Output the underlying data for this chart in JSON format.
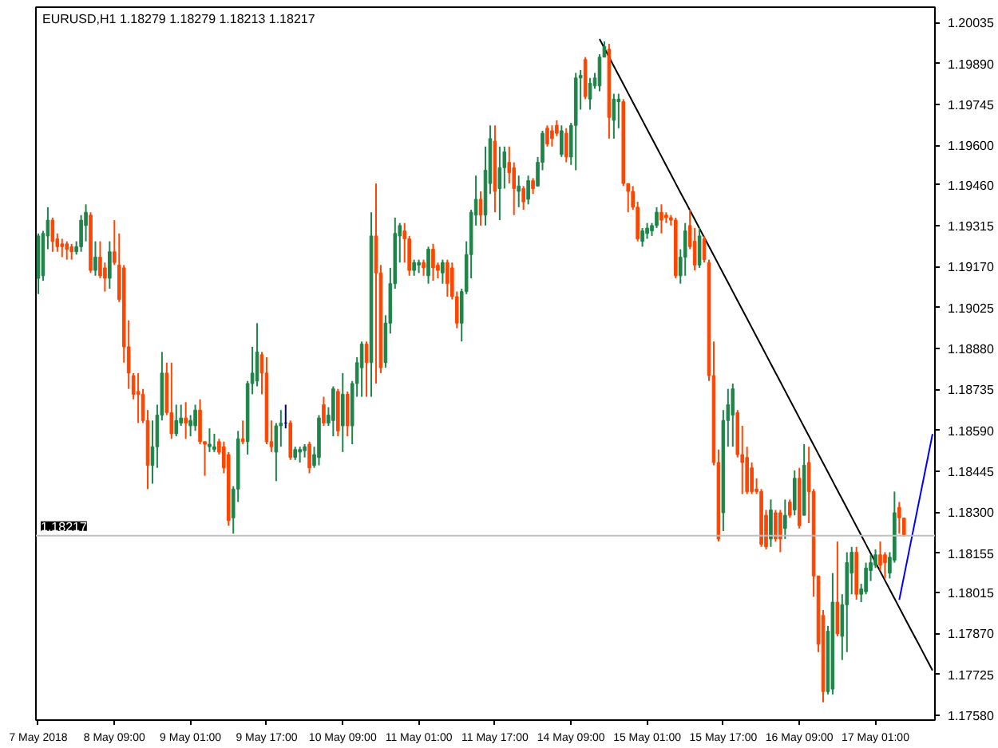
{
  "chart_data": {
    "type": "candlestick",
    "title": "EURUSD,H1 1.18279 1.18279 1.18213 1.18217",
    "ylim": [
      1.17563,
      1.2009
    ],
    "categories": [
      "7 May 2018",
      null,
      null,
      null,
      null,
      null,
      null,
      null,
      null,
      null,
      null,
      null,
      null,
      null,
      null,
      null,
      "8 May 09:00",
      null,
      null,
      null,
      null,
      null,
      null,
      null,
      null,
      null,
      null,
      null,
      null,
      null,
      null,
      null,
      "9 May 01:00",
      null,
      null,
      null,
      null,
      null,
      null,
      null,
      null,
      null,
      null,
      null,
      null,
      null,
      null,
      null,
      "9 May 17:00",
      null,
      null,
      null,
      null,
      null,
      null,
      null,
      null,
      null,
      null,
      null,
      null,
      null,
      null,
      null,
      "10 May 09:00",
      null,
      null,
      null,
      null,
      null,
      null,
      null,
      null,
      null,
      null,
      null,
      null,
      null,
      null,
      null,
      "11 May 01:00",
      null,
      null,
      null,
      null,
      null,
      null,
      null,
      null,
      null,
      null,
      null,
      null,
      null,
      null,
      null,
      "11 May 17:00",
      null,
      null,
      null,
      null,
      null,
      null,
      null,
      null,
      null,
      null,
      null,
      null,
      null,
      null,
      null,
      "14 May 09:00",
      null,
      null,
      null,
      null,
      null,
      null,
      null,
      null,
      null,
      null,
      null,
      null,
      null,
      null,
      null,
      "15 May 01:00",
      null,
      null,
      null,
      null,
      null,
      null,
      null,
      null,
      null,
      null,
      null,
      null,
      null,
      null,
      null,
      "15 May 17:00",
      null,
      null,
      null,
      null,
      null,
      null,
      null,
      null,
      null,
      null,
      null,
      null,
      null,
      null,
      null,
      "16 May 09:00",
      null,
      null,
      null,
      null,
      null,
      null,
      null,
      null,
      null,
      null,
      null,
      null,
      null,
      null,
      null,
      "17 May 01:00",
      null,
      null,
      null,
      null,
      null,
      null,
      null,
      null,
      null,
      null,
      null,
      null
    ],
    "yticks": [
      {
        "value": 1.20035,
        "label": "1.20035"
      },
      {
        "value": 1.1989,
        "label": "1.19890"
      },
      {
        "value": 1.19745,
        "label": "1.19745"
      },
      {
        "value": 1.196,
        "label": "1.19600"
      },
      {
        "value": 1.1946,
        "label": "1.19460"
      },
      {
        "value": 1.19315,
        "label": "1.19315"
      },
      {
        "value": 1.1917,
        "label": "1.19170"
      },
      {
        "value": 1.19025,
        "label": "1.19025"
      },
      {
        "value": 1.1888,
        "label": "1.18880"
      },
      {
        "value": 1.18735,
        "label": "1.18735"
      },
      {
        "value": 1.1859,
        "label": "1.18590"
      },
      {
        "value": 1.18445,
        "label": "1.18445"
      },
      {
        "value": 1.183,
        "label": "1.18300"
      },
      {
        "value": 1.18155,
        "label": "1.18155"
      },
      {
        "value": 1.18015,
        "label": "1.18015"
      },
      {
        "value": 1.1787,
        "label": "1.17870"
      },
      {
        "value": 1.17725,
        "label": "1.17725"
      },
      {
        "value": 1.1758,
        "label": "1.17580"
      }
    ],
    "ref_lines": [
      {
        "axis": "y",
        "value": 1.18217,
        "label": "1.18217",
        "color": "#c0c0c0"
      }
    ],
    "series": [
      {
        "type": "line",
        "color": "#000000",
        "values": [
          null,
          null,
          null,
          null,
          null,
          null,
          null,
          null,
          null,
          null,
          null,
          null,
          null,
          null,
          null,
          null,
          null,
          null,
          null,
          null,
          null,
          null,
          null,
          null,
          null,
          null,
          null,
          null,
          null,
          null,
          null,
          null,
          null,
          null,
          null,
          null,
          null,
          null,
          null,
          null,
          null,
          null,
          null,
          null,
          null,
          null,
          null,
          null,
          null,
          null,
          null,
          null,
          null,
          null,
          null,
          null,
          null,
          null,
          null,
          null,
          null,
          null,
          null,
          null,
          null,
          null,
          null,
          null,
          null,
          null,
          null,
          null,
          null,
          null,
          null,
          null,
          null,
          null,
          null,
          null,
          null,
          null,
          null,
          null,
          null,
          null,
          null,
          null,
          null,
          null,
          null,
          null,
          null,
          null,
          null,
          null,
          null,
          null,
          null,
          null,
          null,
          null,
          null,
          null,
          null,
          null,
          null,
          null,
          null,
          null,
          null,
          null,
          null,
          null,
          null,
          null,
          null,
          null,
          1.19977,
          1.19945,
          1.19913,
          1.19881,
          1.19849,
          1.19817,
          1.19785,
          1.19753,
          1.19721,
          1.19689,
          1.19657,
          1.19625,
          1.19593,
          1.19561,
          1.19529,
          1.19497,
          1.19465,
          1.19433,
          1.19402,
          1.1937,
          1.19338,
          1.19306,
          1.19274,
          1.19242,
          1.1921,
          1.19178,
          1.19146,
          1.19114,
          1.19082,
          1.1905,
          1.19018,
          1.18986,
          1.18954,
          1.18922,
          1.1889,
          1.18858,
          1.18826,
          1.18794,
          1.18762,
          1.1873,
          1.18698,
          1.18666,
          1.18634,
          1.18602,
          1.1857,
          1.18538,
          1.18506,
          1.18474,
          1.18442,
          1.1841,
          1.18378,
          1.18346,
          1.18314,
          1.18282,
          1.1825,
          1.18218,
          1.18186,
          1.18154,
          1.18122,
          1.1809,
          1.18058,
          1.18026,
          1.17994,
          1.17962,
          1.1793,
          1.17898,
          1.17866,
          1.17835,
          1.17803,
          1.17771,
          1.17739
        ]
      },
      {
        "type": "line",
        "color": "#0000ff",
        "values": [
          null,
          null,
          null,
          null,
          null,
          null,
          null,
          null,
          null,
          null,
          null,
          null,
          null,
          null,
          null,
          null,
          null,
          null,
          null,
          null,
          null,
          null,
          null,
          null,
          null,
          null,
          null,
          null,
          null,
          null,
          null,
          null,
          null,
          null,
          null,
          null,
          null,
          null,
          null,
          null,
          null,
          null,
          null,
          null,
          null,
          null,
          null,
          null,
          null,
          null,
          null,
          null,
          null,
          null,
          null,
          null,
          null,
          null,
          null,
          null,
          null,
          null,
          null,
          null,
          null,
          null,
          null,
          null,
          null,
          null,
          null,
          null,
          null,
          null,
          null,
          null,
          null,
          null,
          null,
          null,
          null,
          null,
          null,
          null,
          null,
          null,
          null,
          null,
          null,
          null,
          null,
          null,
          null,
          null,
          null,
          null,
          null,
          null,
          null,
          null,
          null,
          null,
          null,
          null,
          null,
          null,
          null,
          null,
          null,
          null,
          null,
          null,
          null,
          null,
          null,
          null,
          null,
          null,
          null,
          null,
          null,
          null,
          null,
          null,
          null,
          null,
          null,
          null,
          null,
          null,
          null,
          null,
          null,
          null,
          null,
          null,
          null,
          null,
          null,
          null,
          null,
          null,
          null,
          null,
          null,
          null,
          null,
          null,
          null,
          null,
          null,
          null,
          null,
          null,
          null,
          null,
          null,
          null,
          null,
          null,
          null,
          null,
          null,
          null,
          null,
          null,
          null,
          null,
          null,
          null,
          null,
          null,
          null,
          null,
          null,
          null,
          null,
          null,
          null,
          null,
          null,
          1.17989,
          1.18073,
          1.18157,
          1.18241,
          1.18325,
          1.18409,
          1.18493,
          1.18577
        ]
      },
      {
        "colors": [
          "#1e8449",
          "#1e8449",
          "#1e8449",
          "#ff4500",
          "#ff4500",
          "#ff4500",
          "#ff4500",
          "#ff4500",
          "#1e8449",
          "#1e8449",
          "#1e8449",
          "#ff4500",
          "#1e8449",
          "#ff4500",
          "#ff4500",
          "#1e8449",
          "#ff4500",
          "#ff4500",
          "#ff4500",
          "#ff4500",
          "#ff4500",
          "#ff4500",
          "#ff4500",
          "#ff4500",
          "#1e8449",
          "#1e8449",
          "#1e8449",
          "#ff4500",
          "#ff4500",
          "#1e8449",
          "#1e8449",
          "#ff4500",
          "#1e8449",
          "#1e8449",
          "#ff4500",
          "#ff4500",
          "#1e8449",
          "#1e8449",
          "#ff4500",
          "#ff4500",
          "#ff4500",
          "#1e8449",
          "#1e8449",
          "#ff4500",
          "#1e8449",
          "#1e8449",
          "#1e8449",
          "#ff4500",
          "#ff4500",
          "#ff4500",
          "#1e8449",
          "#1e8449",
          "#000080",
          "#ff4500",
          "#1e8449",
          "#1e8449",
          "#1e8449",
          "#ff4500",
          "#1e8449",
          "#1e8449",
          "#ff4500",
          "#1e8449",
          "#1e8449",
          "#ff4500",
          "#1e8449",
          "#ff4500",
          "#1e8449",
          "#1e8449",
          "#1e8449",
          "#ff4500",
          "#1e8449",
          "#ff4500",
          "#ff4500",
          "#1e8449",
          "#1e8449",
          "#1e8449",
          "#1e8449",
          "#ff4500",
          "#ff4500",
          "#1e8449",
          "#1e8449",
          "#ff4500",
          "#1e8449",
          "#ff4500",
          "#ff4500",
          "#1e8449",
          "#ff4500",
          "#ff4500",
          "#ff4500",
          "#1e8449",
          "#1e8449",
          "#1e8449",
          "#1e8449",
          "#ff4500",
          "#1e8449",
          "#1e8449",
          "#ff4500",
          "#1e8449",
          "#1e8449",
          "#ff4500",
          "#ff4500",
          "#1e8449",
          "#ff4500",
          "#1e8449",
          "#ff4500",
          "#1e8449",
          "#1e8449",
          "#ff4500",
          "#ff4500",
          "#ff4500",
          "#1e8449",
          "#ff4500",
          "#1e8449",
          "#1e8449",
          "#1e8449",
          "#ff4500",
          "#1e8449",
          "#1e8449",
          "#1e8449",
          "#1e8449",
          "#ff4500",
          "#1e8449",
          "#1e8449",
          "#ff4500",
          "#ff4500",
          "#ff4500",
          "#ff4500",
          "#1e8449",
          "#1e8449",
          "#1e8449",
          "#1e8449",
          "#ff4500",
          "#ff4500",
          "#ff4500",
          "#ff4500",
          "#1e8449",
          "#1e8449",
          "#ff4500",
          "#ff4500",
          "#1e8449",
          "#ff4500",
          "#ff4500",
          "#ff4500",
          "#ff4500",
          "#1e8449",
          "#1e8449",
          "#1e8449",
          "#ff4500",
          "#ff4500",
          "#ff4500",
          "#ff4500",
          "#ff4500",
          "#ff4500",
          "#ff4500",
          "#1e8449",
          "#ff4500",
          "#ff4500",
          "#1e8449",
          "#ff4500",
          "#1e8449",
          "#ff4500",
          "#1e8449",
          "#ff4500",
          "#ff4500",
          "#ff4500",
          "#ff4500",
          "#1e8449",
          "#1e8449",
          "#ff4500",
          "#1e8449",
          "#1e8449",
          "#1e8449",
          "#ff4500",
          "#1e8449",
          "#1e8449",
          "#1e8449",
          "#1e8449",
          "#ff4500",
          "#ff4500",
          "#1e8449",
          "#1e8449",
          "#ff4500",
          "#ff4500",
          null,
          null,
          null,
          null,
          null,
          null
        ],
        "ohlc": [
          [
            1.19129,
            1.19288,
            1.19073,
            1.19279
          ],
          [
            1.19138,
            1.19297,
            1.1912,
            1.19288
          ],
          [
            1.19279,
            1.19381,
            1.19232,
            1.19335
          ],
          [
            1.19335,
            1.19344,
            1.19223,
            1.1926
          ],
          [
            1.19269,
            1.19288,
            1.19223,
            1.19241
          ],
          [
            1.19251,
            1.19269,
            1.19204,
            1.19241
          ],
          [
            1.19251,
            1.1926,
            1.19195,
            1.19232
          ],
          [
            1.19241,
            1.19251,
            1.19195,
            1.19223
          ],
          [
            1.19223,
            1.1926,
            1.19213,
            1.19241
          ],
          [
            1.19241,
            1.19353,
            1.19223,
            1.19335
          ],
          [
            1.19316,
            1.19391,
            1.1926,
            1.19363
          ],
          [
            1.19353,
            1.19363,
            1.19148,
            1.19157
          ],
          [
            1.19157,
            1.1926,
            1.19138,
            1.19204
          ],
          [
            1.19204,
            1.1926,
            1.19129,
            1.19138
          ],
          [
            1.19166,
            1.19185,
            1.19082,
            1.19129
          ],
          [
            1.19129,
            1.1926,
            1.19092,
            1.19223
          ],
          [
            1.19223,
            1.19335,
            1.19176,
            1.19185
          ],
          [
            1.19176,
            1.19288,
            1.19045,
            1.19054
          ],
          [
            1.19166,
            1.19176,
            1.1883,
            1.18886
          ],
          [
            1.18886,
            1.1898,
            1.18737,
            1.18793
          ],
          [
            1.18784,
            1.18793,
            1.187,
            1.18718
          ],
          [
            1.18728,
            1.18793,
            1.18616,
            1.18718
          ],
          [
            1.18718,
            1.18737,
            1.18616,
            1.18625
          ],
          [
            1.18625,
            1.18662,
            1.18382,
            1.18466
          ],
          [
            1.18466,
            1.18625,
            1.18401,
            1.18532
          ],
          [
            1.18532,
            1.18681,
            1.18457,
            1.18644
          ],
          [
            1.18644,
            1.18868,
            1.18625,
            1.18793
          ],
          [
            1.18793,
            1.1883,
            1.18644,
            1.18653
          ],
          [
            1.18653,
            1.1883,
            1.1856,
            1.18578
          ],
          [
            1.18578,
            1.18681,
            1.18569,
            1.18625
          ],
          [
            1.18616,
            1.18681,
            1.18606,
            1.18634
          ],
          [
            1.18634,
            1.1869,
            1.1856,
            1.18616
          ],
          [
            1.18606,
            1.18644,
            1.18569,
            1.18625
          ],
          [
            1.18606,
            1.18681,
            1.18588,
            1.18662
          ],
          [
            1.18662,
            1.187,
            1.18541,
            1.1855
          ],
          [
            1.1855,
            1.1855,
            1.18429,
            1.18541
          ],
          [
            1.18532,
            1.18597,
            1.18513,
            1.18541
          ],
          [
            1.18522,
            1.18578,
            1.18513,
            1.18532
          ],
          [
            1.1855,
            1.1856,
            1.18504,
            1.18513
          ],
          [
            1.18532,
            1.1855,
            1.18438,
            1.18457
          ],
          [
            1.18504,
            1.18513,
            1.18252,
            1.1827
          ],
          [
            1.1828,
            1.18392,
            1.18224,
            1.18382
          ],
          [
            1.18382,
            1.18588,
            1.18336,
            1.1856
          ],
          [
            1.1856,
            1.18625,
            1.18541,
            1.1855
          ],
          [
            1.1855,
            1.18765,
            1.18504,
            1.18756
          ],
          [
            1.18756,
            1.18886,
            1.18718,
            1.18793
          ],
          [
            1.18765,
            1.1897,
            1.18746,
            1.18868
          ],
          [
            1.18858,
            1.18868,
            1.18718,
            1.18793
          ],
          [
            1.18793,
            1.18849,
            1.18541,
            1.1855
          ],
          [
            1.1855,
            1.18625,
            1.18513,
            1.18532
          ],
          [
            1.18513,
            1.18616,
            1.1841,
            1.18606
          ],
          [
            1.18606,
            1.18662,
            1.18532,
            1.18616
          ],
          [
            1.18616,
            1.18681,
            1.18597,
            1.18616
          ],
          [
            1.18616,
            1.18625,
            1.18485,
            1.18494
          ],
          [
            1.18494,
            1.18532,
            1.18485,
            1.18522
          ],
          [
            1.18513,
            1.18532,
            1.18476,
            1.18522
          ],
          [
            1.18518,
            1.18541,
            1.18494,
            1.18532
          ],
          [
            1.18541,
            1.1855,
            1.18438,
            1.18457
          ],
          [
            1.18466,
            1.18532,
            1.18457,
            1.18504
          ],
          [
            1.18494,
            1.18644,
            1.18466,
            1.18634
          ],
          [
            1.18681,
            1.18709,
            1.18606,
            1.18616
          ],
          [
            1.18616,
            1.18672,
            1.18606,
            1.18644
          ],
          [
            1.18625,
            1.18746,
            1.18569,
            1.18737
          ],
          [
            1.18728,
            1.18737,
            1.18569,
            1.18588
          ],
          [
            1.18606,
            1.18793,
            1.18513,
            1.18718
          ],
          [
            1.18718,
            1.18728,
            1.18569,
            1.18606
          ],
          [
            1.18606,
            1.18765,
            1.18541,
            1.18756
          ],
          [
            1.18756,
            1.18849,
            1.18709,
            1.1883
          ],
          [
            1.18812,
            1.18905,
            1.18709,
            1.18896
          ],
          [
            1.18896,
            1.18905,
            1.18709,
            1.1883
          ],
          [
            1.1883,
            1.19363,
            1.18709,
            1.19279
          ],
          [
            1.19279,
            1.19465,
            1.18756,
            1.19148
          ],
          [
            1.19148,
            1.19176,
            1.18793,
            1.18812
          ],
          [
            1.1883,
            1.18998,
            1.18812,
            1.1897
          ],
          [
            1.1897,
            1.19166,
            1.18933,
            1.1911
          ],
          [
            1.1911,
            1.19344,
            1.19092,
            1.19288
          ],
          [
            1.19279,
            1.19325,
            1.19185,
            1.19316
          ],
          [
            1.19297,
            1.19325,
            1.19185,
            1.19269
          ],
          [
            1.19269,
            1.19279,
            1.19138,
            1.19157
          ],
          [
            1.19157,
            1.19195,
            1.19138,
            1.19185
          ],
          [
            1.19176,
            1.19195,
            1.19148,
            1.19185
          ],
          [
            1.19185,
            1.19195,
            1.19138,
            1.19166
          ],
          [
            1.19138,
            1.19241,
            1.1911,
            1.19232
          ],
          [
            1.19232,
            1.19251,
            1.1912,
            1.19166
          ],
          [
            1.19176,
            1.19185,
            1.19129,
            1.19157
          ],
          [
            1.19148,
            1.19195,
            1.1911,
            1.19185
          ],
          [
            1.19185,
            1.19195,
            1.19064,
            1.1911
          ],
          [
            1.19166,
            1.19185,
            1.19054,
            1.19064
          ],
          [
            1.19064,
            1.19082,
            1.18952,
            1.1897
          ],
          [
            1.1897,
            1.19092,
            1.18905,
            1.19082
          ],
          [
            1.19082,
            1.1926,
            1.19073,
            1.19213
          ],
          [
            1.19213,
            1.19372,
            1.19129,
            1.19363
          ],
          [
            1.19353,
            1.19493,
            1.19316,
            1.19409
          ],
          [
            1.19409,
            1.19437,
            1.19316,
            1.19353
          ],
          [
            1.19353,
            1.19596,
            1.19316,
            1.19512
          ],
          [
            1.19465,
            1.19671,
            1.19428,
            1.19624
          ],
          [
            1.19615,
            1.19671,
            1.19363,
            1.19437
          ],
          [
            1.19447,
            1.19596,
            1.19335,
            1.19521
          ],
          [
            1.19521,
            1.19596,
            1.19447,
            1.19577
          ],
          [
            1.1954,
            1.19596,
            1.19465,
            1.19503
          ],
          [
            1.19521,
            1.1954,
            1.19353,
            1.19447
          ],
          [
            1.19437,
            1.19493,
            1.19381,
            1.19456
          ],
          [
            1.19447,
            1.19456,
            1.19372,
            1.194
          ],
          [
            1.19409,
            1.19493,
            1.19391,
            1.19475
          ],
          [
            1.19475,
            1.19484,
            1.19428,
            1.19447
          ],
          [
            1.19456,
            1.19559,
            1.19456,
            1.1954
          ],
          [
            1.1954,
            1.19652,
            1.19512,
            1.19643
          ],
          [
            1.19661,
            1.19671,
            1.19596,
            1.19605
          ],
          [
            1.19652,
            1.19671,
            1.19596,
            1.19624
          ],
          [
            1.19671,
            1.19689,
            1.19633,
            1.19643
          ],
          [
            1.19568,
            1.19671,
            1.19559,
            1.19652
          ],
          [
            1.19643,
            1.19661,
            1.1954,
            1.19559
          ],
          [
            1.19559,
            1.1968,
            1.19531,
            1.19671
          ],
          [
            1.19671,
            1.19857,
            1.19512,
            1.19839
          ],
          [
            1.19839,
            1.19867,
            1.19727,
            1.19848
          ],
          [
            1.19904,
            1.19913,
            1.19764,
            1.19773
          ],
          [
            1.19764,
            1.19839,
            1.19727,
            1.1982
          ],
          [
            1.19811,
            1.19857,
            1.19801,
            1.19839
          ],
          [
            1.19811,
            1.19923,
            1.19792,
            1.19913
          ],
          [
            1.19913,
            1.19969,
            1.19913,
            1.19951
          ],
          [
            1.19941,
            1.1996,
            1.19624,
            1.19699
          ],
          [
            1.19689,
            1.19783,
            1.19624,
            1.19764
          ],
          [
            1.19755,
            1.19783,
            1.19661,
            1.19764
          ],
          [
            1.19755,
            1.19764,
            1.19456,
            1.19465
          ],
          [
            1.19465,
            1.19465,
            1.19363,
            1.19437
          ],
          [
            1.19437,
            1.19456,
            1.19372,
            1.19381
          ],
          [
            1.19381,
            1.194,
            1.1926,
            1.19269
          ],
          [
            1.1926,
            1.19307,
            1.19241,
            1.19297
          ],
          [
            1.19288,
            1.19325,
            1.19269,
            1.19307
          ],
          [
            1.19297,
            1.19325,
            1.19279,
            1.19316
          ],
          [
            1.19316,
            1.19381,
            1.19307,
            1.19363
          ],
          [
            1.19363,
            1.19391,
            1.19288,
            1.19335
          ],
          [
            1.19353,
            1.19363,
            1.19325,
            1.19344
          ],
          [
            1.19344,
            1.19353,
            1.19316,
            1.19335
          ],
          [
            1.19335,
            1.19344,
            1.19129,
            1.19138
          ],
          [
            1.19138,
            1.19232,
            1.1911,
            1.19204
          ],
          [
            1.19204,
            1.19325,
            1.19138,
            1.19297
          ],
          [
            1.19316,
            1.19372,
            1.19232,
            1.19241
          ],
          [
            1.1926,
            1.19307,
            1.19157,
            1.19176
          ],
          [
            1.19176,
            1.19307,
            1.19166,
            1.19279
          ],
          [
            1.19269,
            1.19279,
            1.19185,
            1.19195
          ],
          [
            1.19185,
            1.19195,
            1.18765,
            1.18784
          ],
          [
            1.18784,
            1.18905,
            1.18466,
            1.18476
          ],
          [
            1.18476,
            1.18522,
            1.18196,
            1.18205
          ],
          [
            1.18298,
            1.18662,
            1.18233,
            1.18625
          ],
          [
            1.18625,
            1.18737,
            1.18532,
            1.18681
          ],
          [
            1.18644,
            1.18756,
            1.18532,
            1.18737
          ],
          [
            1.18653,
            1.18662,
            1.18494,
            1.18504
          ],
          [
            1.18504,
            1.18606,
            1.18364,
            1.18476
          ],
          [
            1.18494,
            1.18532,
            1.18364,
            1.18373
          ],
          [
            1.18457,
            1.18476,
            1.18364,
            1.18373
          ],
          [
            1.18382,
            1.1842,
            1.18364,
            1.18373
          ],
          [
            1.18373,
            1.18382,
            1.18177,
            1.18186
          ],
          [
            1.18289,
            1.18308,
            1.18168,
            1.18177
          ],
          [
            1.18205,
            1.18345,
            1.18177,
            1.18308
          ],
          [
            1.18298,
            1.18308,
            1.18196,
            1.18205
          ],
          [
            1.18298,
            1.18308,
            1.18158,
            1.18205
          ],
          [
            1.18242,
            1.18345,
            1.18205,
            1.18289
          ],
          [
            1.18336,
            1.18345,
            1.1828,
            1.18289
          ],
          [
            1.18308,
            1.18448,
            1.18289,
            1.1842
          ],
          [
            1.1842,
            1.18457,
            1.18242,
            1.18252
          ],
          [
            1.18289,
            1.18541,
            1.18289,
            1.18466
          ],
          [
            1.18476,
            1.18532,
            1.18261,
            1.18373
          ],
          [
            1.18373,
            1.18382,
            1.18,
            1.18074
          ],
          [
            1.18074,
            1.18074,
            1.17804,
            1.17832
          ],
          [
            1.17934,
            1.17953,
            1.17626,
            1.17664
          ],
          [
            1.17664,
            1.17897,
            1.17654,
            1.17878
          ],
          [
            1.17673,
            1.18084,
            1.17654,
            1.17981
          ],
          [
            1.17981,
            1.18196,
            1.1786,
            1.17869
          ],
          [
            1.1786,
            1.18009,
            1.17776,
            1.17972
          ],
          [
            1.17972,
            1.18158,
            1.17804,
            1.18121
          ],
          [
            1.18084,
            1.18177,
            1.18009,
            1.18158
          ],
          [
            1.18158,
            1.18177,
            1.1799,
            1.18009
          ],
          [
            1.18009,
            1.18046,
            1.17981,
            1.18028
          ],
          [
            1.18018,
            1.18121,
            1.18009,
            1.18102
          ],
          [
            1.18093,
            1.18149,
            1.18056,
            1.18121
          ],
          [
            1.18112,
            1.18168,
            1.18102,
            1.18149
          ],
          [
            1.18149,
            1.18196,
            1.18093,
            1.18112
          ],
          [
            1.18149,
            1.18158,
            1.18065,
            1.18121
          ],
          [
            1.18084,
            1.18158,
            1.18065,
            1.1814
          ],
          [
            1.1813,
            1.18373,
            1.18121,
            1.18298
          ],
          [
            1.18317,
            1.18336,
            1.18224,
            1.1828
          ],
          [
            1.18279,
            1.18279,
            1.18213,
            1.18217
          ],
          null,
          null,
          null,
          null,
          null,
          null
        ]
      }
    ]
  }
}
